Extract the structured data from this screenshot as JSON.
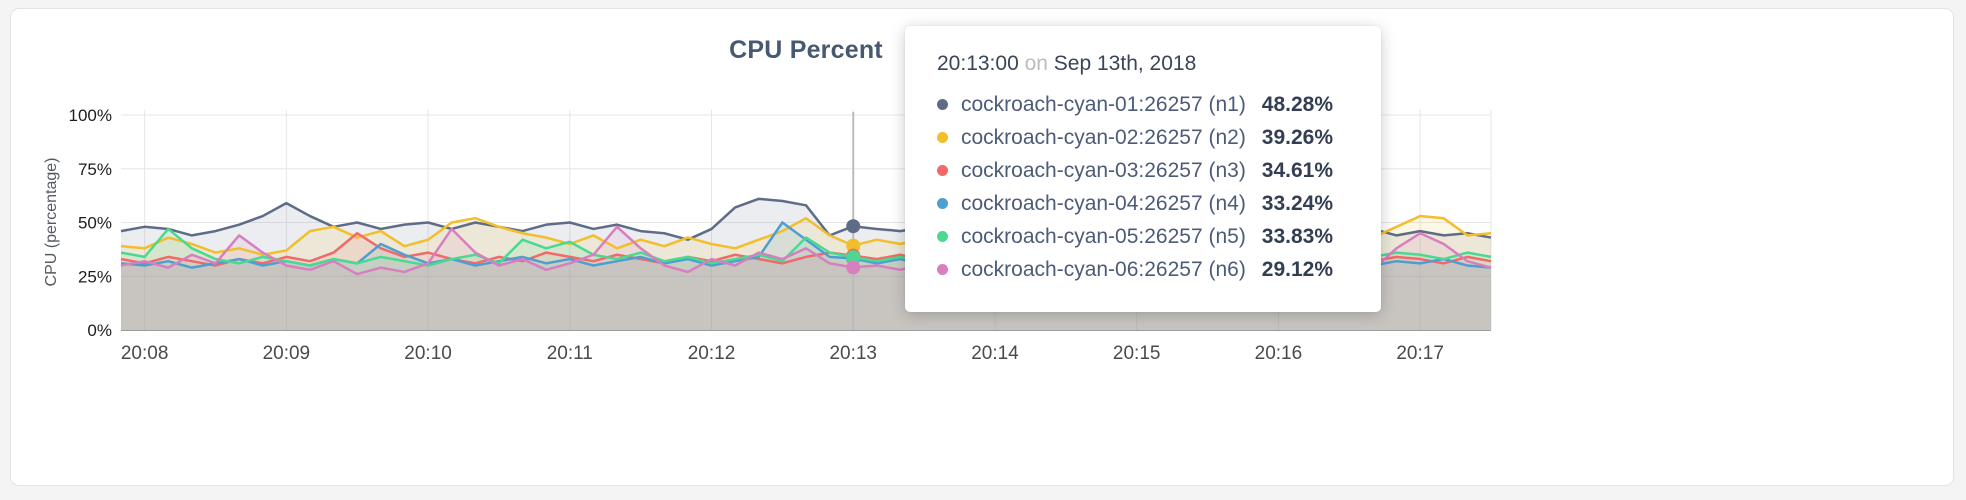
{
  "colors": {
    "title": "#475872",
    "grid": "#e6e6e6",
    "axis_line": "#9a9a9a",
    "hover_line": "#b8bcc0",
    "x_tick_text": "#4a4a4a",
    "y_tick_text": "#1c1c1c",
    "card_background": "#ffffff",
    "page_background": "#f4f4f5"
  },
  "chart_data": {
    "type": "line-area",
    "title": "CPU Percent",
    "ylabel": "CPU (percentage)",
    "xlabel": "",
    "ylim": [
      0,
      100
    ],
    "y_tick_values": [
      0,
      25,
      50,
      75,
      100
    ],
    "y_tick_labels": [
      "0%",
      "25%",
      "50%",
      "75%",
      "100%"
    ],
    "x_start": "20:07:50",
    "x_step_seconds": 10,
    "x_tick_labels": [
      "20:08",
      "20:09",
      "20:10",
      "20:11",
      "20:12",
      "20:13",
      "20:14",
      "20:15",
      "20:16",
      "20:17"
    ],
    "x_tick_indices": [
      1,
      7,
      13,
      19,
      25,
      31,
      37,
      43,
      49,
      55
    ],
    "grid": true,
    "legend_position": "tooltip-only",
    "hover": {
      "time": "20:13:00",
      "connector": "on",
      "date": "Sep 13th, 2018",
      "index": 31
    },
    "series": [
      {
        "id": "n1",
        "name": "cockroach-cyan-01:26257 (n1)",
        "color": "#5F6C87",
        "hover_value": "48.28%",
        "values": [
          46,
          48,
          47,
          44,
          46,
          49,
          53,
          59,
          53,
          48,
          50,
          47,
          49,
          50,
          47,
          50,
          48,
          46,
          49,
          50,
          47,
          49,
          46,
          45,
          42,
          47,
          57,
          61,
          60,
          58,
          44,
          48.28,
          47,
          46,
          48,
          45,
          47,
          46,
          48,
          45,
          47,
          44,
          46,
          47,
          45,
          46,
          48,
          45,
          46,
          47,
          44,
          46,
          45,
          47,
          44,
          46,
          44,
          45,
          43
        ]
      },
      {
        "id": "n2",
        "name": "cockroach-cyan-02:26257 (n2)",
        "color": "#F2BE2C",
        "hover_value": "39.26%",
        "values": [
          39,
          38,
          43,
          40,
          36,
          38,
          35,
          37,
          46,
          48,
          43,
          46,
          39,
          42,
          50,
          52,
          48,
          45,
          43,
          40,
          44,
          38,
          42,
          39,
          43,
          40,
          38,
          42,
          46,
          52,
          44,
          39.26,
          42,
          40,
          43,
          41,
          39,
          42,
          40,
          43,
          41,
          44,
          40,
          42,
          39,
          41,
          43,
          40,
          42,
          41,
          39,
          42,
          40,
          43,
          48,
          53,
          52,
          44,
          45
        ]
      },
      {
        "id": "n3",
        "name": "cockroach-cyan-03:26257 (n3)",
        "color": "#F16969",
        "hover_value": "34.61%",
        "values": [
          33,
          31,
          34,
          32,
          30,
          33,
          31,
          34,
          32,
          36,
          45,
          38,
          34,
          36,
          33,
          31,
          34,
          32,
          36,
          34,
          32,
          35,
          33,
          31,
          34,
          32,
          35,
          33,
          31,
          34,
          36,
          34.61,
          33,
          35,
          32,
          34,
          31,
          33,
          35,
          32,
          34,
          31,
          33,
          35,
          32,
          34,
          31,
          33,
          32,
          34,
          31,
          33,
          35,
          32,
          34,
          33,
          31,
          34,
          32
        ]
      },
      {
        "id": "n4",
        "name": "cockroach-cyan-04:26257 (n4)",
        "color": "#4E9FD1",
        "hover_value": "33.24%",
        "values": [
          31,
          30,
          32,
          29,
          31,
          33,
          30,
          32,
          30,
          33,
          31,
          40,
          35,
          31,
          33,
          30,
          32,
          34,
          31,
          33,
          30,
          32,
          34,
          31,
          33,
          30,
          32,
          34,
          50,
          42,
          34,
          33.24,
          31,
          33,
          30,
          32,
          34,
          31,
          33,
          30,
          32,
          34,
          31,
          33,
          30,
          32,
          31,
          33,
          30,
          32,
          34,
          31,
          33,
          30,
          32,
          31,
          33,
          30,
          29
        ]
      },
      {
        "id": "n5",
        "name": "cockroach-cyan-05:26257 (n5)",
        "color": "#49D990",
        "hover_value": "33.83%",
        "values": [
          36,
          34,
          47,
          38,
          33,
          31,
          34,
          32,
          30,
          33,
          31,
          34,
          32,
          30,
          33,
          35,
          31,
          42,
          38,
          41,
          35,
          33,
          36,
          32,
          34,
          31,
          33,
          35,
          32,
          43,
          36,
          33.83,
          32,
          34,
          31,
          33,
          35,
          32,
          34,
          31,
          33,
          35,
          32,
          34,
          31,
          33,
          35,
          32,
          34,
          31,
          33,
          35,
          32,
          34,
          36,
          35,
          33,
          36,
          34
        ]
      },
      {
        "id": "n6",
        "name": "cockroach-cyan-06:26257 (n6)",
        "color": "#D77FBF",
        "hover_value": "29.12%",
        "values": [
          30,
          32,
          29,
          35,
          31,
          44,
          36,
          30,
          28,
          32,
          26,
          29,
          27,
          31,
          47,
          36,
          30,
          33,
          28,
          31,
          35,
          48,
          38,
          30,
          27,
          33,
          30,
          36,
          33,
          38,
          31,
          29.12,
          30,
          28,
          31,
          29,
          32,
          30,
          28,
          31,
          29,
          32,
          30,
          28,
          31,
          29,
          32,
          30,
          28,
          31,
          29,
          32,
          30,
          28,
          38,
          45,
          40,
          32,
          29
        ]
      }
    ]
  }
}
